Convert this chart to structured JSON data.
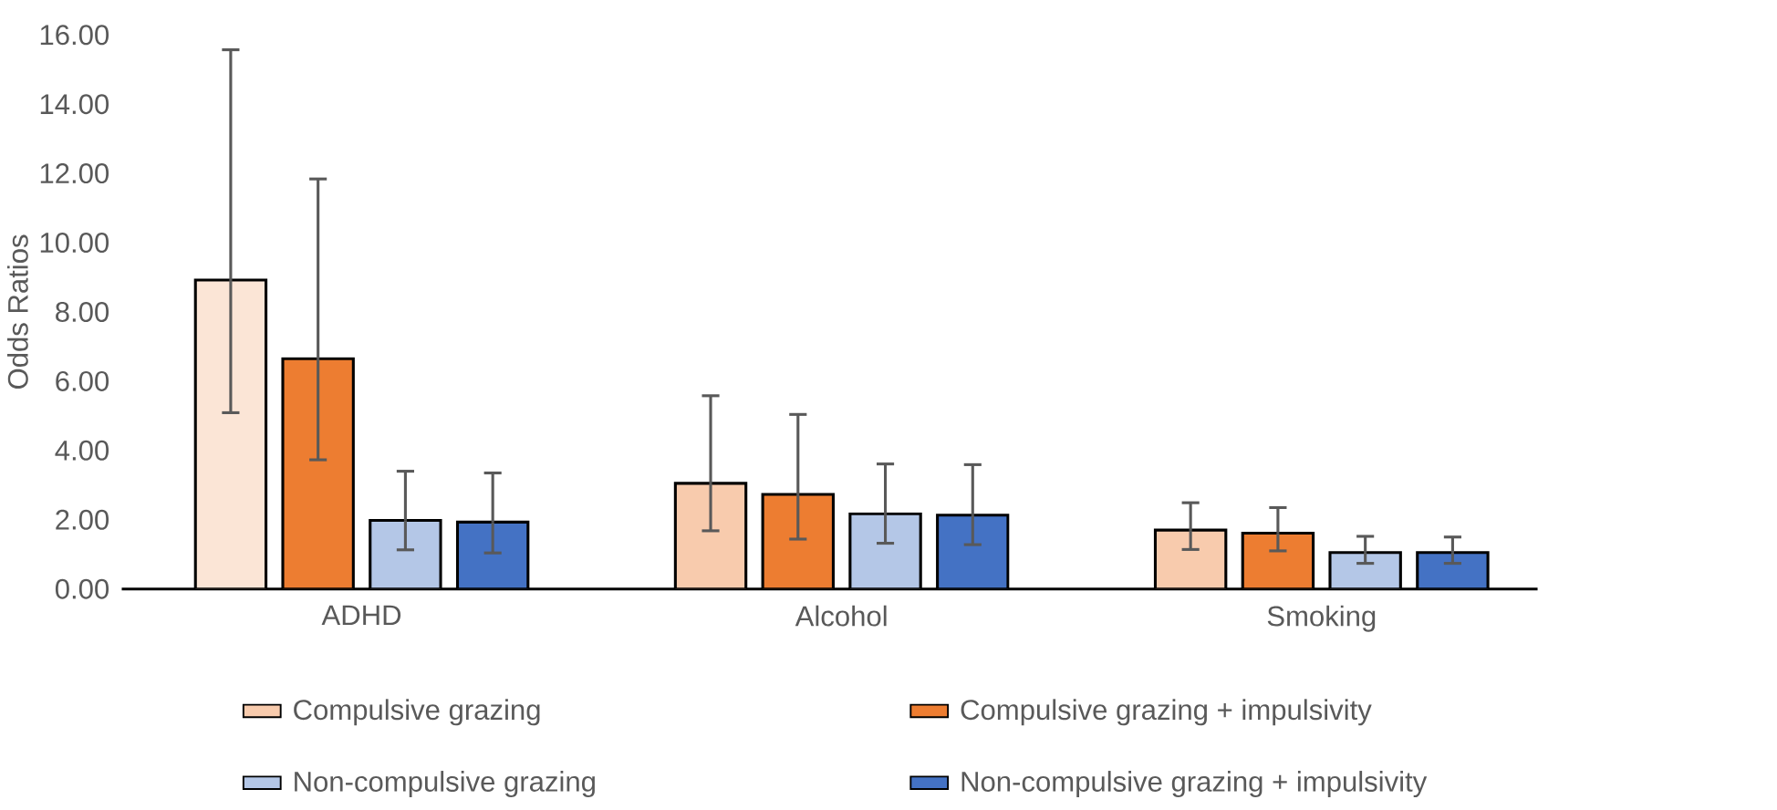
{
  "chart_data": {
    "type": "bar",
    "ylabel": "Odds Ratios",
    "categories": [
      "ADHD",
      "Alcohol",
      "Smoking"
    ],
    "ylim": [
      0,
      16
    ],
    "yticks": [
      {
        "value": 0,
        "label": "0.00"
      },
      {
        "value": 2,
        "label": "2.00"
      },
      {
        "value": 4,
        "label": "4.00"
      },
      {
        "value": 6,
        "label": "6.00"
      },
      {
        "value": 8,
        "label": "8.00"
      },
      {
        "value": 10,
        "label": "10.00"
      },
      {
        "value": 12,
        "label": "12.00"
      },
      {
        "value": 14,
        "label": "14.00"
      },
      {
        "value": 16,
        "label": "16.00"
      }
    ],
    "series": [
      {
        "name": "Compulsive grazing",
        "color": "#f8cbad",
        "colors": [
          "#fbe5d6",
          "#f8cbad",
          "#f8cbad"
        ],
        "values": [
          8.92,
          3.05,
          1.7
        ],
        "errors": [
          [
            5.09,
            15.57
          ],
          [
            1.68,
            5.58
          ],
          [
            1.14,
            2.49
          ]
        ]
      },
      {
        "name": "Compulsive grazing + impulsivity",
        "color": "#ed7d31",
        "values": [
          6.65,
          2.73,
          1.61
        ],
        "errors": [
          [
            3.73,
            11.84
          ],
          [
            1.44,
            5.04
          ],
          [
            1.1,
            2.35
          ]
        ]
      },
      {
        "name": "Non-compulsive grazing",
        "color": "#b4c7e7",
        "values": [
          1.98,
          2.17,
          1.05
        ],
        "errors": [
          [
            1.13,
            3.4
          ],
          [
            1.32,
            3.61
          ],
          [
            0.74,
            1.52
          ]
        ]
      },
      {
        "name": "Non-compulsive grazing + impulsivity",
        "color": "#4472c4",
        "values": [
          1.93,
          2.13,
          1.05
        ],
        "errors": [
          [
            1.04,
            3.35
          ],
          [
            1.28,
            3.59
          ],
          [
            0.74,
            1.5
          ]
        ]
      }
    ],
    "legend": "bottom",
    "grid": false
  }
}
